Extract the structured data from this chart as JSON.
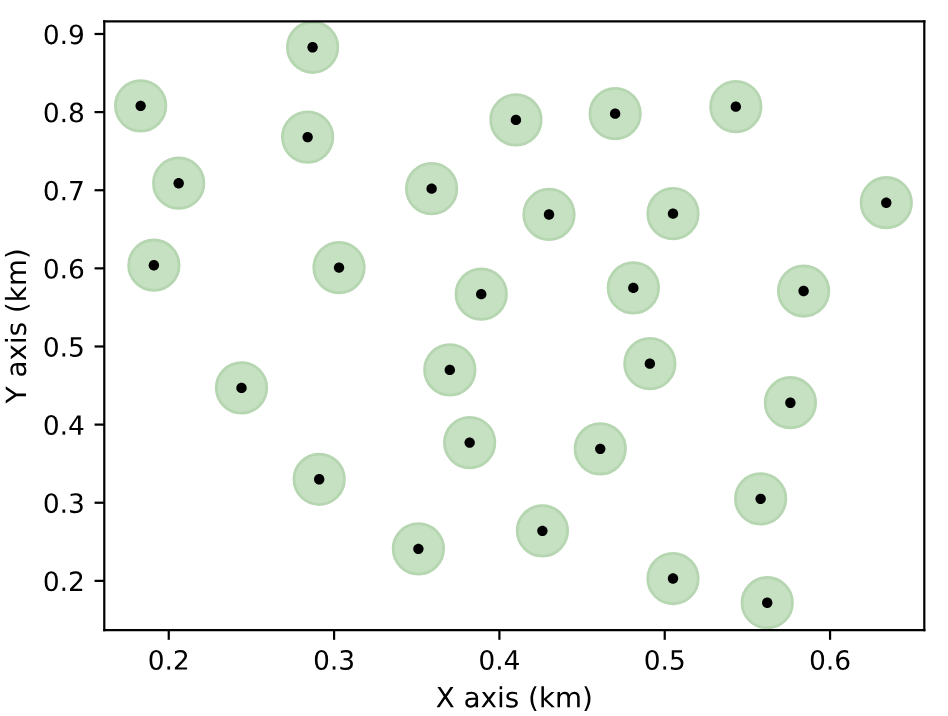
{
  "chart_data": {
    "type": "scatter",
    "xlabel": "X axis (km)",
    "ylabel": "Y axis (km)",
    "x": [
      0.183,
      0.287,
      0.284,
      0.206,
      0.191,
      0.303,
      0.244,
      0.291,
      0.351,
      0.359,
      0.41,
      0.47,
      0.543,
      0.43,
      0.505,
      0.634,
      0.389,
      0.481,
      0.584,
      0.37,
      0.491,
      0.576,
      0.382,
      0.461,
      0.558,
      0.426,
      0.505,
      0.562
    ],
    "series": [
      {
        "color": "#c6e0c2",
        "values": [
          0.808,
          0.883,
          0.768,
          0.709,
          0.604,
          0.601,
          0.447,
          0.33,
          0.241,
          0.702,
          0.79,
          0.798,
          0.807,
          0.669,
          0.67,
          0.684,
          0.567,
          0.575,
          0.571,
          0.47,
          0.478,
          0.428,
          0.377,
          0.369,
          0.305,
          0.264,
          0.203,
          0.172
        ]
      },
      {
        "color": "#000000",
        "values": [
          0.808,
          0.883,
          0.768,
          0.709,
          0.604,
          0.601,
          0.447,
          0.33,
          0.241,
          0.702,
          0.79,
          0.798,
          0.807,
          0.669,
          0.67,
          0.684,
          0.567,
          0.575,
          0.571,
          0.47,
          0.478,
          0.428,
          0.377,
          0.369,
          0.305,
          0.264,
          0.203,
          0.172
        ]
      }
    ],
    "xlim": [
      0.161,
      0.657
    ],
    "ylim": [
      0.137,
      0.916
    ],
    "xticks": [
      0.2,
      0.3,
      0.4,
      0.5,
      0.6
    ],
    "yticks": [
      0.2,
      0.3,
      0.4,
      0.5,
      0.6,
      0.7,
      0.8,
      0.9
    ],
    "grid": false,
    "legend": false,
    "marker": "circle"
  }
}
